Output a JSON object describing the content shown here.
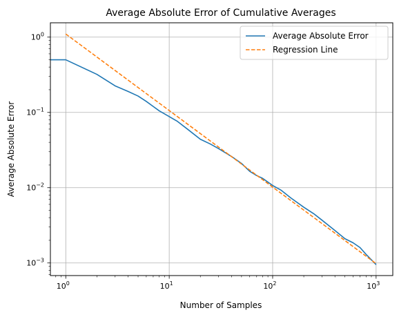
{
  "chart_data": {
    "type": "line",
    "title": "Average Absolute Error of Cumulative Averages",
    "xlabel": "Number of Samples",
    "ylabel": "Average Absolute Error",
    "xscale": "log",
    "yscale": "log",
    "xlim": [
      0.71,
      1450
    ],
    "ylim": [
      0.00068,
      1.55
    ],
    "grid": true,
    "legend_position": "upper-right",
    "x_ticks": [
      {
        "value": 1,
        "base": "10",
        "exp": "0"
      },
      {
        "value": 10,
        "base": "10",
        "exp": "1"
      },
      {
        "value": 100,
        "base": "10",
        "exp": "2"
      },
      {
        "value": 1000,
        "base": "10",
        "exp": "3"
      }
    ],
    "y_ticks": [
      {
        "value": 0.001,
        "base": "10",
        "exp": "−3"
      },
      {
        "value": 0.01,
        "base": "10",
        "exp": "−2"
      },
      {
        "value": 0.1,
        "base": "10",
        "exp": "−1"
      },
      {
        "value": 1,
        "base": "10",
        "exp": "0"
      }
    ],
    "series": [
      {
        "name": "Average Absolute Error",
        "color": "#1f77b4",
        "style": "solid",
        "x": [
          0.71,
          1,
          2,
          3,
          4,
          5,
          6,
          7,
          8,
          10,
          12,
          15,
          20,
          25,
          30,
          40,
          50,
          60,
          70,
          80,
          100,
          120,
          150,
          200,
          250,
          300,
          400,
          500,
          600,
          700,
          800,
          1000
        ],
        "y": [
          0.5,
          0.5,
          0.32,
          0.225,
          0.19,
          0.165,
          0.14,
          0.12,
          0.105,
          0.088,
          0.076,
          0.06,
          0.044,
          0.038,
          0.033,
          0.026,
          0.021,
          0.0165,
          0.0145,
          0.0133,
          0.0107,
          0.0093,
          0.0073,
          0.0055,
          0.0045,
          0.0037,
          0.0027,
          0.0021,
          0.00185,
          0.0016,
          0.0013,
          0.00095
        ]
      },
      {
        "name": "Regression Line",
        "color": "#ff7f0e",
        "style": "dashed",
        "x": [
          1,
          1000
        ],
        "y": [
          1.1,
          0.00098
        ]
      }
    ]
  }
}
